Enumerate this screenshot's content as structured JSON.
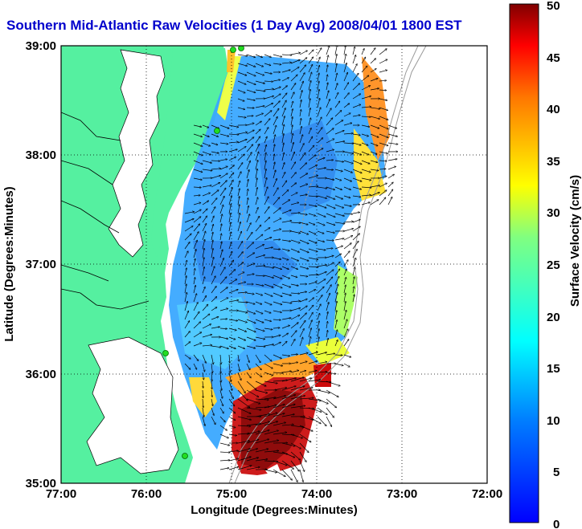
{
  "title": "Southern Mid-Atlantic Raw Velocities (1 Day Avg) 2008/04/01 1800 EST",
  "axes": {
    "xlabel": "Longitude (Degrees:Minutes)",
    "ylabel": "Latitude (Degrees:Minutes)",
    "x_ticks": [
      "77:00",
      "76:00",
      "75:00",
      "74:00",
      "73:00",
      "72:00"
    ],
    "y_ticks": [
      "39:00",
      "38:00",
      "37:00",
      "36:00",
      "35:00"
    ],
    "xlim": [
      -77,
      -72
    ],
    "ylim": [
      35,
      39
    ],
    "grid": true
  },
  "colorbar": {
    "label": "Surface Velocity (cm/s)",
    "ticks": [
      "50",
      "45",
      "40",
      "35",
      "30",
      "25",
      "20",
      "15",
      "10",
      "5",
      "0"
    ],
    "range": [
      0,
      50
    ],
    "colormap": "jet",
    "orientation": "vertical"
  },
  "colors": {
    "title": "#0000cc",
    "land": "#55f0a0",
    "water": "#ffffff",
    "arrows": "#000000",
    "bathymetry": "#9a9a9a",
    "stations": "#22dd22"
  }
}
